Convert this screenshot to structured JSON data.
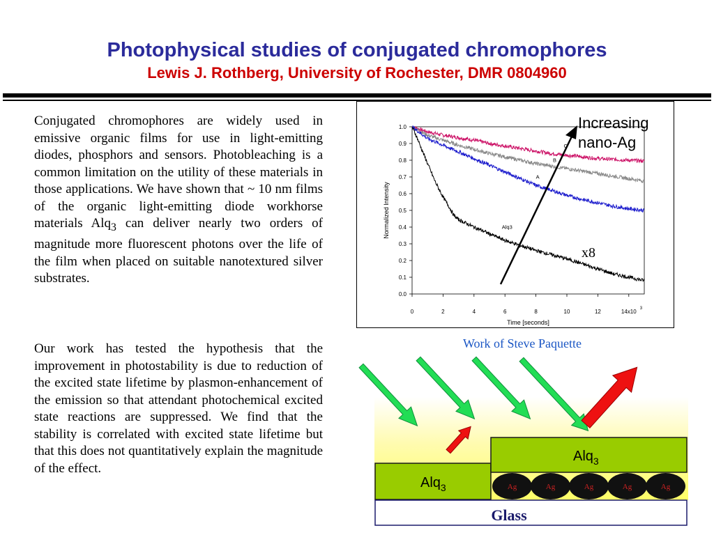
{
  "title": "Photophysical studies of conjugated chromophores",
  "subtitle": "Lewis J. Rothberg, University of Rochester, DMR 0804960",
  "paragraph1_html": "Conjugated chromophores are widely used in emissive organic films for use in light-emitting diodes, phosphors and sensors. Photobleaching is a common limitation on the utility of these materials in those applications. We have shown that ~ 10 nm films of the organic light-emitting diode workhorse materials Alq<sub>3</sub> can deliver nearly two orders of magnitude more fluorescent photons over the life of the film when placed on suitable nanotextured silver substrates.",
  "paragraph2": "Our work has tested the hypothesis that the improvement in photostability is due to reduction of the excited state lifetime by plasmon-enhancement of the emission so that attendant photochemical excited state reactions are suppressed. We find that the stability is correlated with excited state lifetime but that this does not quantitatively explain the magnitude of the effect.",
  "chart_annotation": [
    "Increasing",
    "nano-Ag"
  ],
  "x8_label": "x8",
  "credit": "Work of Steve Paquette",
  "chart_data": {
    "type": "line",
    "xlabel": "Time [seconds]",
    "ylabel": "Normalized Intensity",
    "xlim": [
      0,
      15000
    ],
    "ylim": [
      0.0,
      1.0
    ],
    "x_ticks": [
      0,
      2000,
      4000,
      6000,
      8000,
      10000,
      12000,
      14000
    ],
    "x_tick_labels": [
      "0",
      "2",
      "4",
      "6",
      "8",
      "10",
      "12",
      "14x10"
    ],
    "x_tick_exponent": "3",
    "y_ticks": [
      0.0,
      0.1,
      0.2,
      0.3,
      0.4,
      0.5,
      0.6,
      0.7,
      0.8,
      0.9,
      1.0
    ],
    "y_tick_labels": [
      "0.0",
      "0.1",
      "0.2",
      "0.3",
      "0.4",
      "0.5",
      "0.6",
      "0.7",
      "0.8",
      "0.9",
      "1.0"
    ],
    "series": [
      {
        "name": "C",
        "color": "#cc1166",
        "x": [
          0,
          1000,
          2000,
          3000,
          4000,
          5000,
          6000,
          7000,
          8000,
          9000,
          10000,
          11000,
          12000,
          13000,
          14000,
          15000
        ],
        "values": [
          1.0,
          0.97,
          0.95,
          0.935,
          0.92,
          0.9,
          0.885,
          0.87,
          0.855,
          0.84,
          0.83,
          0.82,
          0.81,
          0.805,
          0.8,
          0.795
        ]
      },
      {
        "name": "B",
        "color": "#888888",
        "x": [
          0,
          1000,
          2000,
          3000,
          4000,
          5000,
          6000,
          7000,
          8000,
          9000,
          10000,
          11000,
          12000,
          13000,
          14000,
          15000
        ],
        "values": [
          1.0,
          0.95,
          0.92,
          0.89,
          0.865,
          0.84,
          0.82,
          0.8,
          0.78,
          0.765,
          0.75,
          0.735,
          0.72,
          0.705,
          0.69,
          0.675
        ]
      },
      {
        "name": "A",
        "color": "#1a1acc",
        "x": [
          0,
          1000,
          2000,
          3000,
          4000,
          5000,
          6000,
          7000,
          8000,
          9000,
          10000,
          11000,
          12000,
          13000,
          14000,
          15000
        ],
        "values": [
          1.0,
          0.93,
          0.89,
          0.85,
          0.81,
          0.77,
          0.73,
          0.69,
          0.65,
          0.62,
          0.59,
          0.565,
          0.545,
          0.525,
          0.51,
          0.5
        ]
      },
      {
        "name": "Alq3",
        "color": "#000000",
        "x": [
          0,
          300,
          600,
          1000,
          1500,
          2000,
          2400,
          2700,
          3000,
          4000,
          5000,
          6000,
          7000,
          8000,
          9000,
          10000,
          11000,
          12000,
          13000,
          14000,
          15000
        ],
        "values": [
          1.0,
          0.94,
          0.87,
          0.78,
          0.67,
          0.58,
          0.52,
          0.47,
          0.445,
          0.4,
          0.36,
          0.32,
          0.29,
          0.26,
          0.235,
          0.21,
          0.18,
          0.15,
          0.12,
          0.1,
          0.08
        ]
      }
    ]
  },
  "diagram": {
    "alq3_label": "Alq",
    "alq3_sub": "3",
    "ag_label": "Ag",
    "ag_count": 5,
    "glass_label": "Glass",
    "layer_color": "#99cc00",
    "incoming_arrow_color": "#22dd55",
    "emission_arrow_color": "#ee1111"
  }
}
